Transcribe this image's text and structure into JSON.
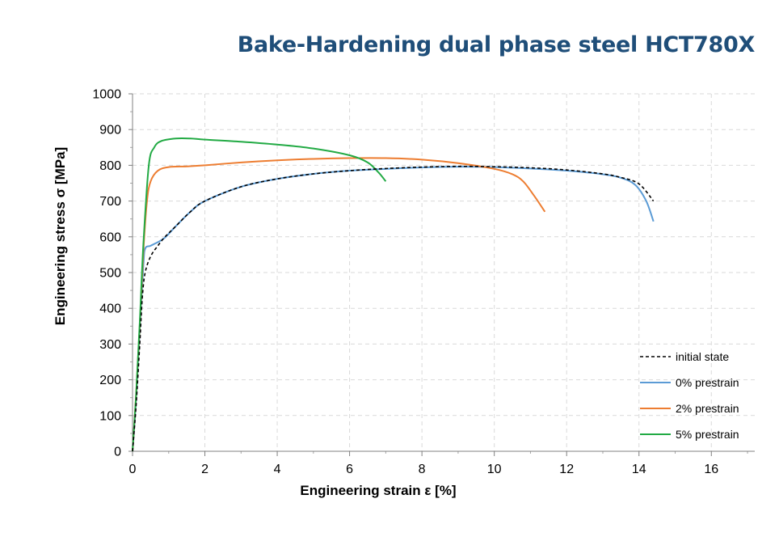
{
  "chart_data": {
    "type": "line",
    "title": "Bake-Hardening dual phase steel HCT780X",
    "xlabel": "Engineering strain ε [%]",
    "ylabel": "Engineering stress σ [MPa]",
    "xlim": [
      0,
      17.2
    ],
    "ylim": [
      0,
      1000
    ],
    "xticks": [
      0,
      2,
      4,
      6,
      8,
      10,
      12,
      14,
      16
    ],
    "yticks": [
      0,
      100,
      200,
      300,
      400,
      500,
      600,
      700,
      800,
      900,
      1000
    ],
    "grid": true,
    "legend_position": "bottom-right",
    "series": [
      {
        "name": "initial state",
        "color": "#000000",
        "dash": true,
        "points": [
          [
            0,
            0
          ],
          [
            0.1,
            130
          ],
          [
            0.2,
            300
          ],
          [
            0.27,
            430
          ],
          [
            0.35,
            500
          ],
          [
            0.5,
            545
          ],
          [
            0.7,
            575
          ],
          [
            0.9,
            600
          ],
          [
            1.2,
            630
          ],
          [
            1.6,
            670
          ],
          [
            2,
            700
          ],
          [
            3,
            740
          ],
          [
            4,
            762
          ],
          [
            5,
            776
          ],
          [
            6,
            785
          ],
          [
            7,
            791
          ],
          [
            8,
            795
          ],
          [
            9,
            797
          ],
          [
            10,
            796
          ],
          [
            11,
            793
          ],
          [
            12,
            787
          ],
          [
            13,
            776
          ],
          [
            13.5,
            766
          ],
          [
            14,
            748
          ],
          [
            14.4,
            700
          ]
        ]
      },
      {
        "name": "0% prestrain",
        "color": "#5b9bd5",
        "dash": false,
        "points": [
          [
            0,
            0
          ],
          [
            0.1,
            150
          ],
          [
            0.2,
            340
          ],
          [
            0.3,
            520
          ],
          [
            0.35,
            567
          ],
          [
            0.5,
            575
          ],
          [
            0.7,
            585
          ],
          [
            0.9,
            598
          ],
          [
            1.2,
            630
          ],
          [
            1.6,
            670
          ],
          [
            2,
            700
          ],
          [
            3,
            740
          ],
          [
            4,
            762
          ],
          [
            5,
            776
          ],
          [
            6,
            785
          ],
          [
            7,
            790
          ],
          [
            8,
            794
          ],
          [
            9,
            796
          ],
          [
            10,
            795
          ],
          [
            11,
            791
          ],
          [
            12,
            785
          ],
          [
            13,
            775
          ],
          [
            13.5,
            765
          ],
          [
            13.9,
            745
          ],
          [
            14.2,
            700
          ],
          [
            14.4,
            643
          ]
        ]
      },
      {
        "name": "2% prestrain",
        "color": "#ed7d31",
        "dash": false,
        "points": [
          [
            0,
            0
          ],
          [
            0.1,
            160
          ],
          [
            0.2,
            350
          ],
          [
            0.3,
            560
          ],
          [
            0.4,
            700
          ],
          [
            0.5,
            755
          ],
          [
            0.7,
            785
          ],
          [
            1,
            795
          ],
          [
            1.5,
            797
          ],
          [
            2,
            800
          ],
          [
            3,
            808
          ],
          [
            4,
            814
          ],
          [
            5,
            818
          ],
          [
            6,
            820
          ],
          [
            7,
            820
          ],
          [
            8,
            816
          ],
          [
            9,
            806
          ],
          [
            10,
            790
          ],
          [
            10.5,
            775
          ],
          [
            10.8,
            755
          ],
          [
            11.1,
            715
          ],
          [
            11.4,
            670
          ]
        ]
      },
      {
        "name": "5% prestrain",
        "color": "#22aa44",
        "dash": false,
        "points": [
          [
            0,
            0
          ],
          [
            0.1,
            160
          ],
          [
            0.2,
            360
          ],
          [
            0.3,
            580
          ],
          [
            0.45,
            800
          ],
          [
            0.6,
            850
          ],
          [
            0.8,
            868
          ],
          [
            1.2,
            875
          ],
          [
            1.6,
            875
          ],
          [
            2,
            872
          ],
          [
            3,
            866
          ],
          [
            4,
            858
          ],
          [
            5,
            847
          ],
          [
            6,
            828
          ],
          [
            6.5,
            808
          ],
          [
            6.8,
            780
          ],
          [
            7,
            755
          ]
        ]
      }
    ]
  }
}
